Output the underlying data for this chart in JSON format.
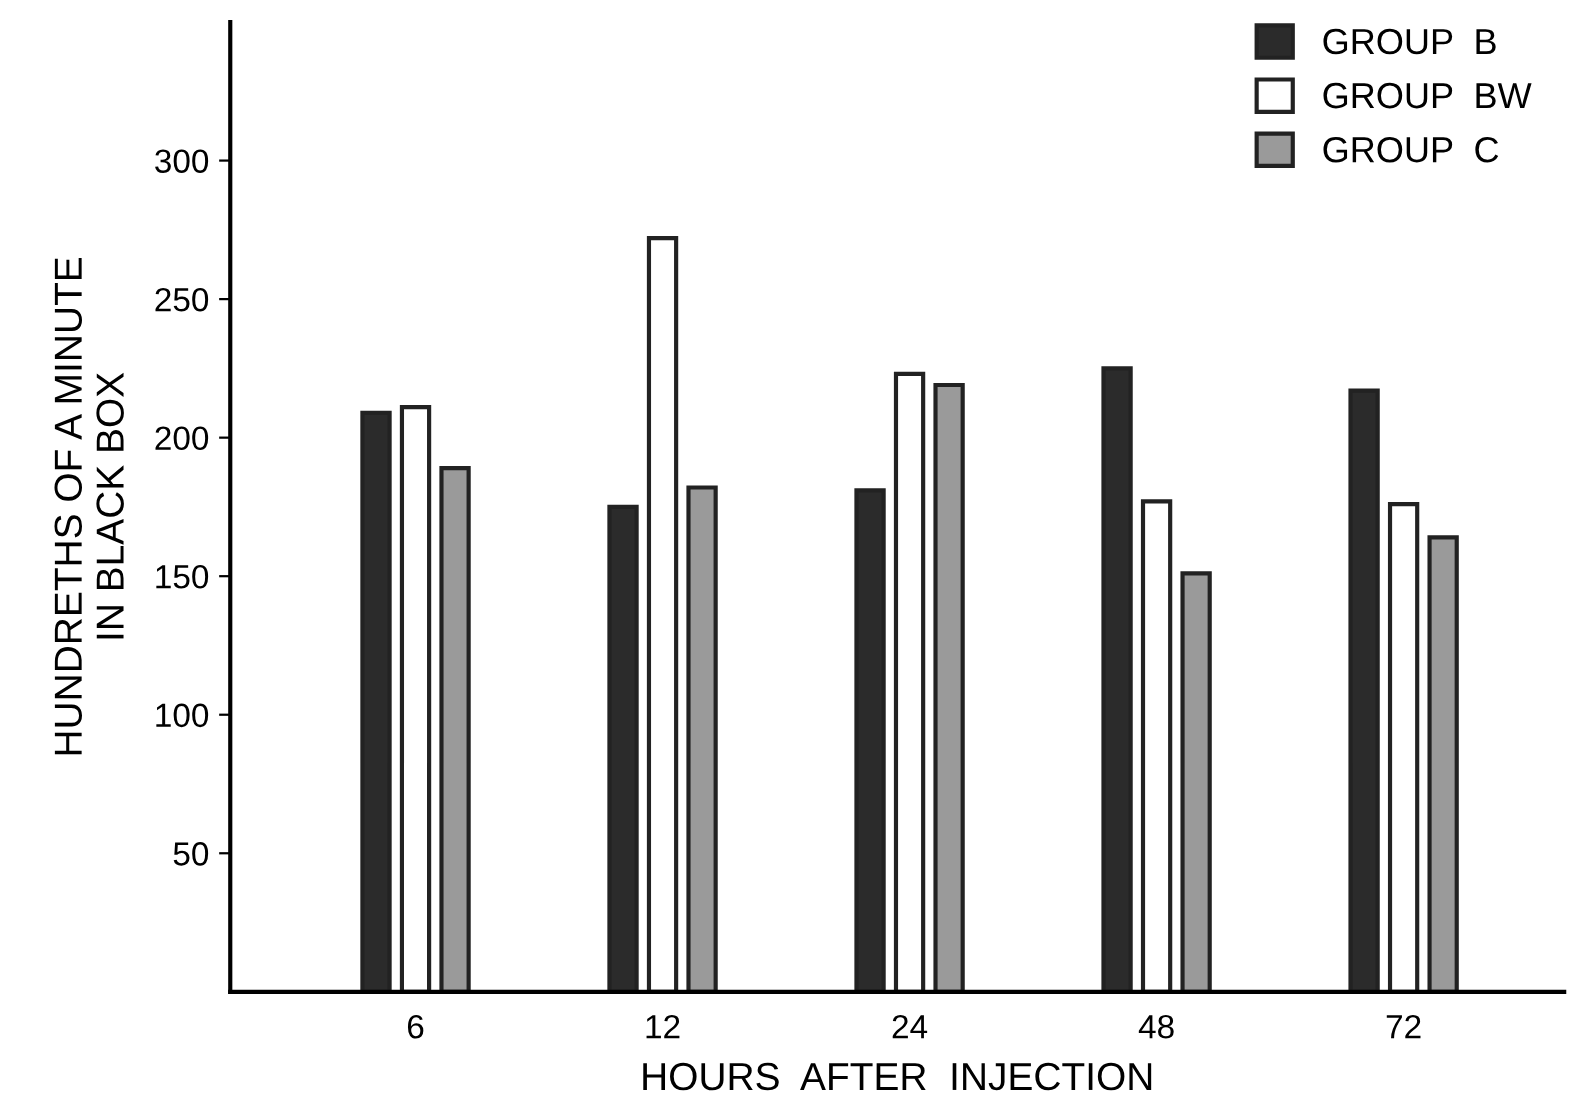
{
  "chart_data": {
    "type": "bar",
    "xlabel": "HOURS  AFTER  INJECTION",
    "ylabel": "HUNDRETHS OF A MINUTE\nIN BLACK BOX",
    "categories": [
      "6",
      "12",
      "24",
      "48",
      "72"
    ],
    "series": [
      {
        "name": "GROUP  B",
        "color": "#2b2b2b",
        "values": [
          209,
          175,
          181,
          225,
          217
        ]
      },
      {
        "name": "GROUP  BW",
        "color": "#ffffff",
        "values": [
          211,
          272,
          223,
          177,
          176
        ]
      },
      {
        "name": "GROUP  C",
        "color": "#9a9a9a",
        "values": [
          189,
          182,
          219,
          151,
          164
        ]
      }
    ],
    "ylim": [
      0,
      350
    ],
    "yticks": [
      50,
      100,
      150,
      200,
      250,
      300
    ],
    "legend": "top right",
    "grid": false
  }
}
